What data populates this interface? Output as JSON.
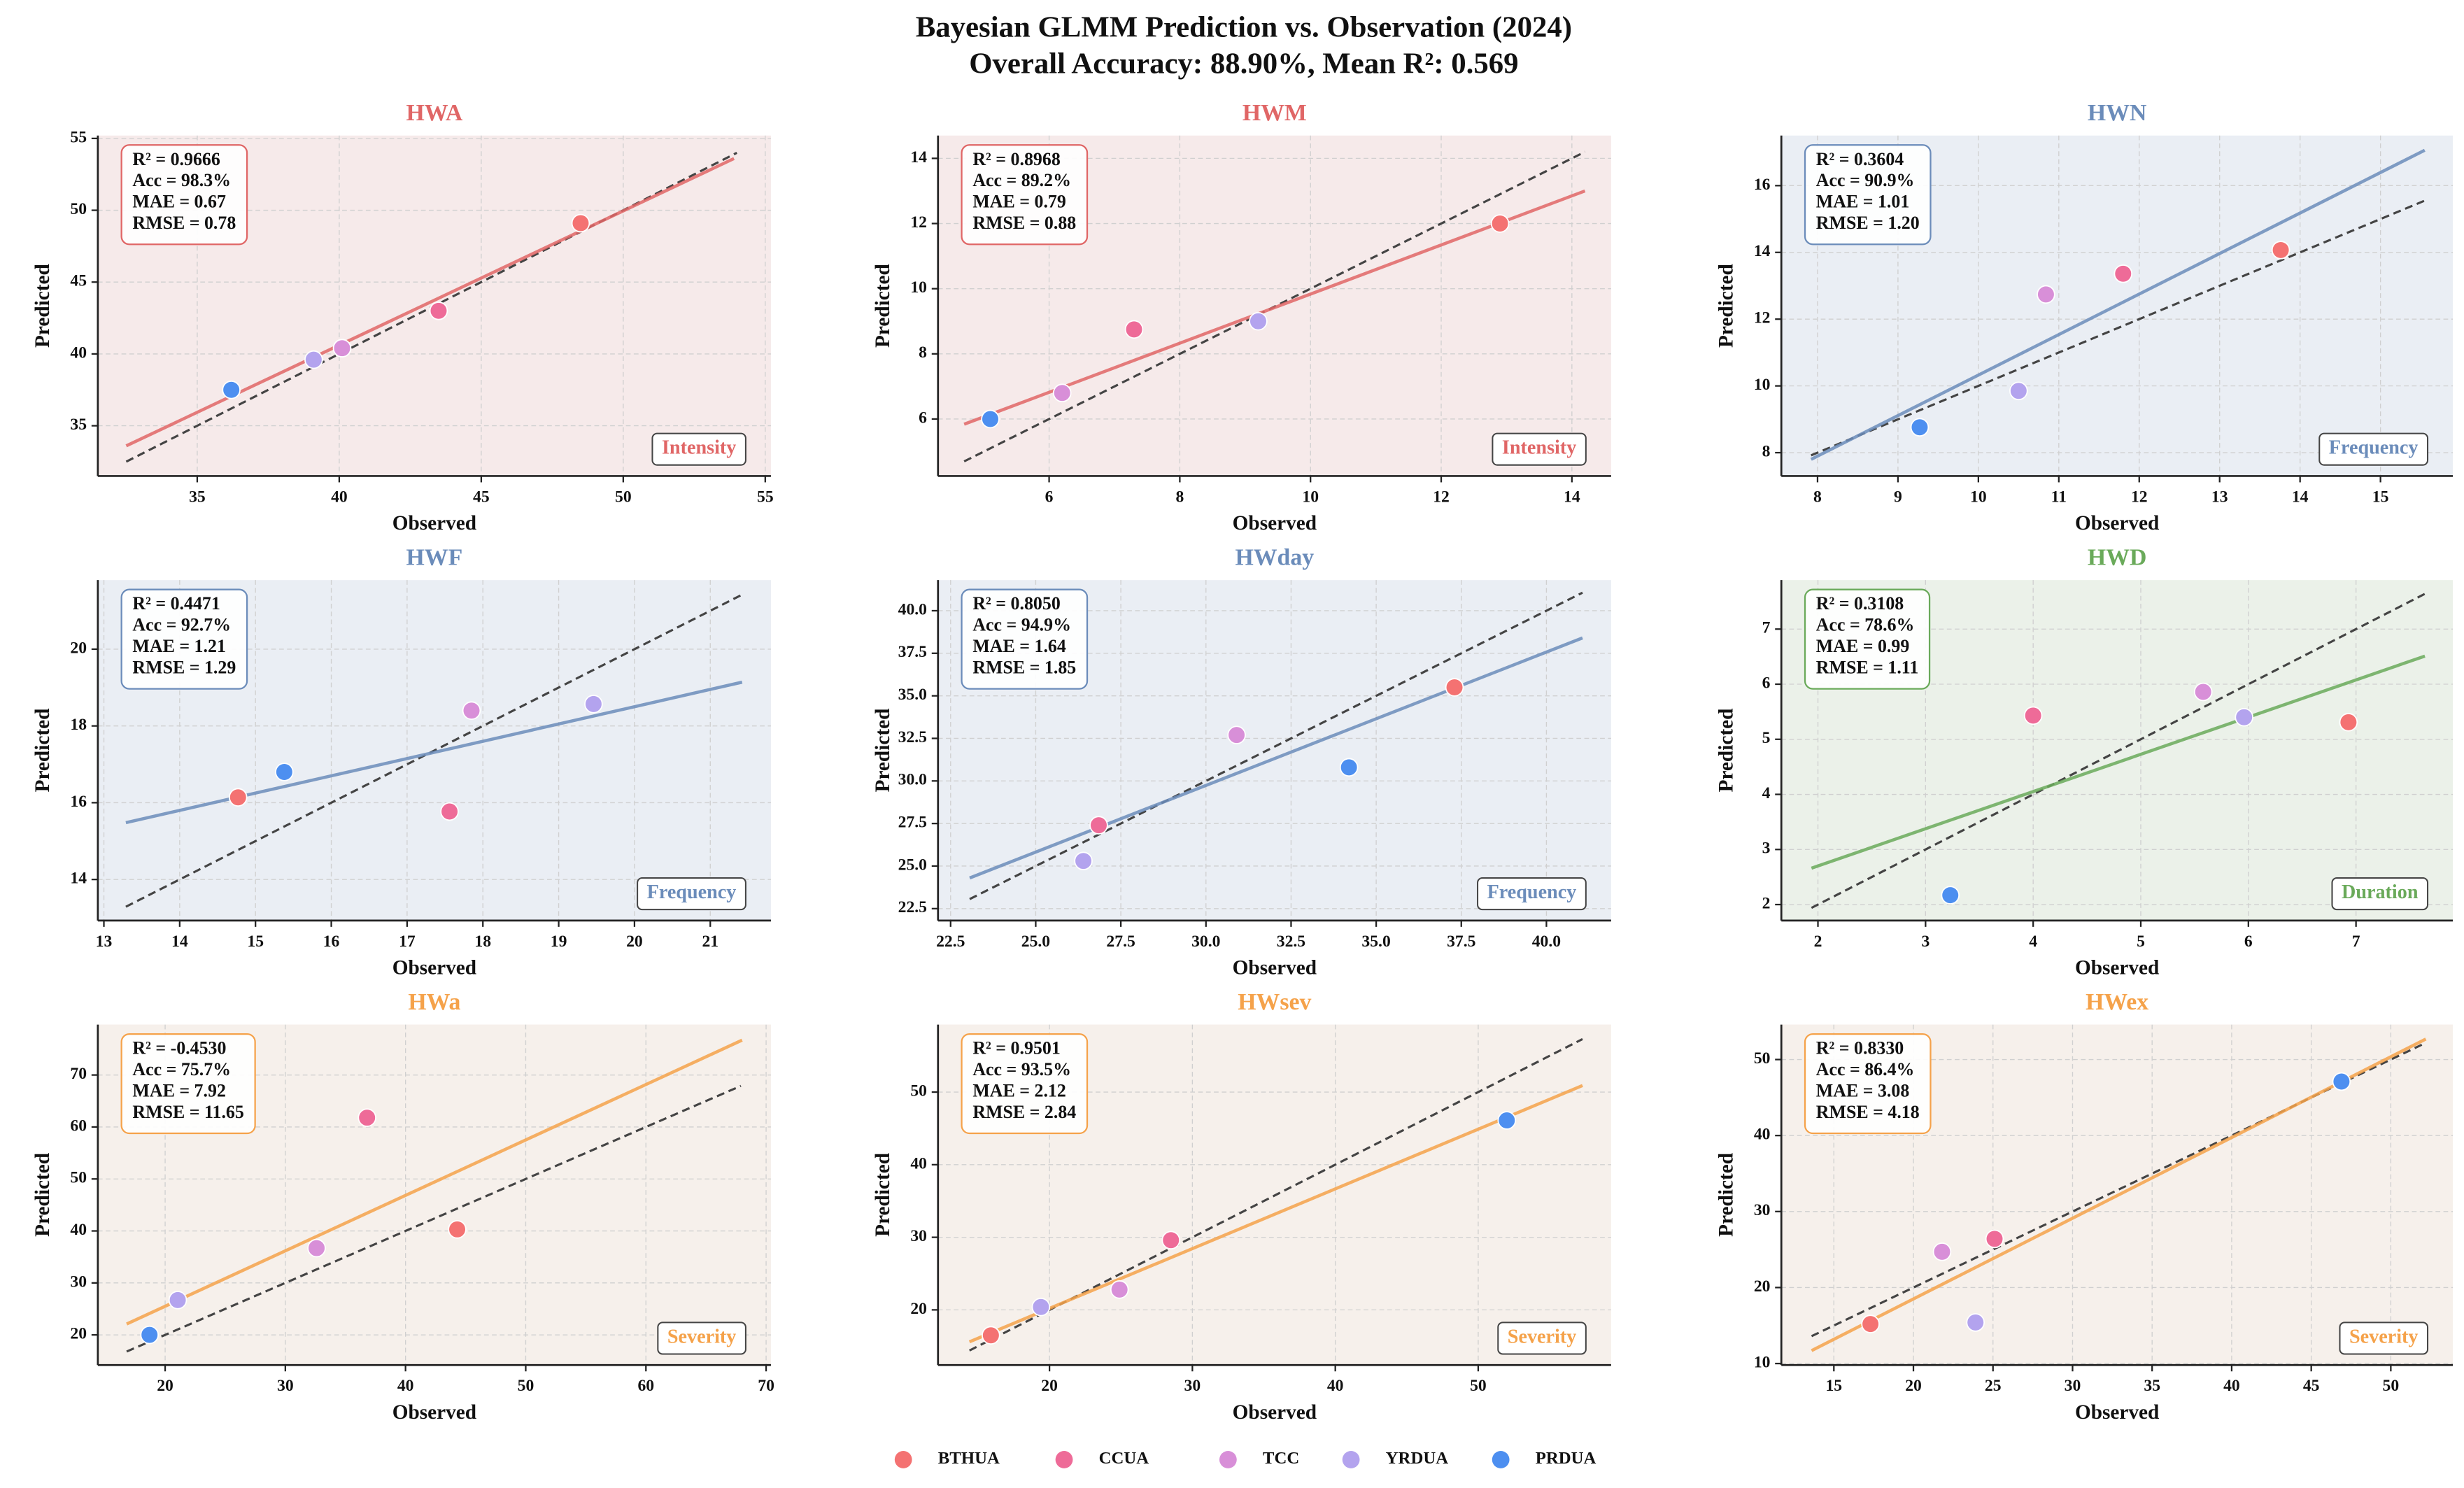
{
  "title_lines": [
    "Bayesian GLMM Prediction vs. Observation (2024)",
    "Overall Accuracy: 88.90%, Mean R²: 0.569"
  ],
  "chart_data": [
    {
      "type": "scatter",
      "title": "HWA",
      "category": "Intensity",
      "color": "#e06666",
      "background": "#f6eaea",
      "grid": true,
      "x_label": "Observed",
      "y_label": "Predicted",
      "stats": [
        "R² = 0.9666",
        "Acc = 98.3%",
        "MAE = 0.67",
        "RMSE = 0.78"
      ],
      "xlim": [
        31.5,
        55.2
      ],
      "xticks": [
        35,
        40,
        45,
        50,
        55
      ],
      "ylim": [
        31.5,
        55.2
      ],
      "yticks": [
        35,
        40,
        45,
        50,
        55
      ],
      "series": [
        {
          "name": "BTHUA",
          "color": "#f47272",
          "x": [
            48.5
          ],
          "values": [
            49.1
          ]
        },
        {
          "name": "CCUA",
          "color": "#ee6b98",
          "x": [
            43.5
          ],
          "values": [
            43.0
          ]
        },
        {
          "name": "TCC",
          "color": "#d88fd8",
          "x": [
            40.1
          ],
          "values": [
            40.4
          ]
        },
        {
          "name": "YRDUA",
          "color": "#b3a3ee",
          "x": [
            39.1
          ],
          "values": [
            39.6
          ]
        },
        {
          "name": "PRDUA",
          "color": "#4d8ff0",
          "x": [
            36.2
          ],
          "values": [
            37.5
          ]
        }
      ],
      "fit_line": {
        "x": [
          32.5,
          53.9
        ],
        "y": [
          33.6,
          53.6
        ]
      },
      "identity_line": {
        "x": [
          32.5,
          54
        ],
        "y": [
          32.5,
          54
        ]
      }
    },
    {
      "type": "scatter",
      "title": "HWM",
      "category": "Intensity",
      "color": "#e06666",
      "background": "#f6eaea",
      "grid": true,
      "x_label": "Observed",
      "y_label": "Predicted",
      "stats": [
        "R² = 0.8968",
        "Acc = 89.2%",
        "MAE = 0.79",
        "RMSE = 0.88"
      ],
      "xlim": [
        4.3,
        14.6
      ],
      "xticks": [
        6,
        8,
        10,
        12,
        14
      ],
      "ylim": [
        4.25,
        14.7
      ],
      "yticks": [
        6,
        8,
        10,
        12,
        14
      ],
      "series": [
        {
          "name": "BTHUA",
          "color": "#f47272",
          "x": [
            12.9
          ],
          "values": [
            12.0
          ]
        },
        {
          "name": "CCUA",
          "color": "#ee6b98",
          "x": [
            7.3
          ],
          "values": [
            8.75
          ]
        },
        {
          "name": "TCC",
          "color": "#d88fd8",
          "x": [
            6.2
          ],
          "values": [
            6.8
          ]
        },
        {
          "name": "YRDUA",
          "color": "#b3a3ee",
          "x": [
            9.2
          ],
          "values": [
            9.0
          ]
        },
        {
          "name": "PRDUA",
          "color": "#4d8ff0",
          "x": [
            5.1
          ],
          "values": [
            6.0
          ]
        }
      ],
      "fit_line": {
        "x": [
          4.7,
          14.2
        ],
        "y": [
          5.84,
          13.0
        ]
      },
      "identity_line": {
        "x": [
          4.7,
          14.2
        ],
        "y": [
          4.7,
          14.2
        ]
      }
    },
    {
      "type": "scatter",
      "title": "HWN",
      "category": "Frequency",
      "color": "#6b8cba",
      "background": "#eaeef4",
      "grid": true,
      "x_label": "Observed",
      "y_label": "Predicted",
      "stats": [
        "R² = 0.3604",
        "Acc = 90.9%",
        "MAE = 1.01",
        "RMSE = 1.20"
      ],
      "xlim": [
        7.55,
        15.9
      ],
      "xticks": [
        8,
        9,
        10,
        11,
        12,
        13,
        14,
        15
      ],
      "ylim": [
        7.3,
        17.5
      ],
      "yticks": [
        8,
        10,
        12,
        14,
        16
      ],
      "series": [
        {
          "name": "BTHUA",
          "color": "#f47272",
          "x": [
            13.76
          ],
          "values": [
            14.07
          ]
        },
        {
          "name": "CCUA",
          "color": "#ee6b98",
          "x": [
            11.8
          ],
          "values": [
            13.36
          ]
        },
        {
          "name": "TCC",
          "color": "#d88fd8",
          "x": [
            10.84
          ],
          "values": [
            12.74
          ]
        },
        {
          "name": "YRDUA",
          "color": "#b3a3ee",
          "x": [
            10.5
          ],
          "values": [
            9.85
          ]
        },
        {
          "name": "PRDUA",
          "color": "#4d8ff0",
          "x": [
            9.27
          ],
          "values": [
            8.76
          ]
        }
      ],
      "fit_line": {
        "x": [
          7.92,
          15.55
        ],
        "y": [
          7.8,
          17.06
        ]
      },
      "identity_line": {
        "x": [
          7.92,
          15.55
        ],
        "y": [
          7.92,
          15.55
        ]
      }
    },
    {
      "type": "scatter",
      "title": "HWF",
      "category": "Frequency",
      "color": "#6b8cba",
      "background": "#eaeef4",
      "grid": true,
      "x_label": "Observed",
      "y_label": "Predicted",
      "stats": [
        "R² = 0.4471",
        "Acc = 92.7%",
        "MAE = 1.21",
        "RMSE = 1.29"
      ],
      "xlim": [
        12.92,
        21.8
      ],
      "xticks": [
        13,
        14,
        15,
        16,
        17,
        18,
        19,
        20,
        21
      ],
      "ylim": [
        12.93,
        21.8
      ],
      "yticks": [
        14,
        16,
        18,
        20
      ],
      "series": [
        {
          "name": "BTHUA",
          "color": "#f47272",
          "x": [
            14.77
          ],
          "values": [
            16.14
          ]
        },
        {
          "name": "CCUA",
          "color": "#ee6b98",
          "x": [
            17.56
          ],
          "values": [
            15.77
          ]
        },
        {
          "name": "TCC",
          "color": "#d88fd8",
          "x": [
            17.85
          ],
          "values": [
            18.4
          ]
        },
        {
          "name": "YRDUA",
          "color": "#b3a3ee",
          "x": [
            19.46
          ],
          "values": [
            18.57
          ]
        },
        {
          "name": "PRDUA",
          "color": "#4d8ff0",
          "x": [
            15.38
          ],
          "values": [
            16.8
          ]
        }
      ],
      "fit_line": {
        "x": [
          13.29,
          21.42
        ],
        "y": [
          15.48,
          19.14
        ]
      },
      "identity_line": {
        "x": [
          13.29,
          21.42
        ],
        "y": [
          13.29,
          21.42
        ]
      }
    },
    {
      "type": "scatter",
      "title": "HWday",
      "category": "Frequency",
      "color": "#6b8cba",
      "background": "#eaeef4",
      "grid": true,
      "x_label": "Observed",
      "y_label": "Predicted",
      "stats": [
        "R² = 0.8050",
        "Acc = 94.9%",
        "MAE = 1.64",
        "RMSE = 1.85"
      ],
      "xlim": [
        22.13,
        41.9
      ],
      "xticks": [
        22.5,
        {
          "value": 25,
          "label": "25.0"
        },
        27.5,
        {
          "value": 30,
          "label": "30.0"
        },
        32.5,
        {
          "value": 35,
          "label": "35.0"
        },
        37.5,
        {
          "value": 40,
          "label": "40.0"
        }
      ],
      "ylim": [
        21.8,
        41.8
      ],
      "yticks": [
        22.5,
        {
          "value": 25,
          "label": "25.0"
        },
        27.5,
        {
          "value": 30,
          "label": "30.0"
        },
        32.5,
        {
          "value": 35,
          "label": "35.0"
        },
        37.5,
        {
          "value": 40,
          "label": "40.0"
        }
      ],
      "series": [
        {
          "name": "BTHUA",
          "color": "#f47272",
          "x": [
            37.3
          ],
          "values": [
            35.5
          ]
        },
        {
          "name": "CCUA",
          "color": "#ee6b98",
          "x": [
            26.85
          ],
          "values": [
            27.4
          ]
        },
        {
          "name": "TCC",
          "color": "#d88fd8",
          "x": [
            30.9
          ],
          "values": [
            32.7
          ]
        },
        {
          "name": "YRDUA",
          "color": "#b3a3ee",
          "x": [
            26.4
          ],
          "values": [
            25.3
          ]
        },
        {
          "name": "PRDUA",
          "color": "#4d8ff0",
          "x": [
            34.2
          ],
          "values": [
            30.8
          ]
        }
      ],
      "fit_line": {
        "x": [
          23.06,
          41.06
        ],
        "y": [
          24.3,
          38.4
        ]
      },
      "identity_line": {
        "x": [
          23.06,
          41.06
        ],
        "y": [
          23.06,
          41.06
        ]
      }
    },
    {
      "type": "scatter",
      "title": "HWD",
      "category": "Duration",
      "color": "#6aaa5a",
      "background": "#ebf1e9",
      "grid": true,
      "x_label": "Observed",
      "y_label": "Predicted",
      "stats": [
        "R² = 0.3108",
        "Acc = 78.6%",
        "MAE = 0.99",
        "RMSE = 1.11"
      ],
      "xlim": [
        1.66,
        7.9
      ],
      "xticks": [
        2,
        3,
        4,
        5,
        6,
        7
      ],
      "ylim": [
        1.71,
        7.89
      ],
      "yticks": [
        2,
        3,
        4,
        5,
        6,
        7
      ],
      "series": [
        {
          "name": "BTHUA",
          "color": "#f47272",
          "x": [
            6.93
          ],
          "values": [
            5.31
          ]
        },
        {
          "name": "CCUA",
          "color": "#ee6b98",
          "x": [
            4.0
          ],
          "values": [
            5.43
          ]
        },
        {
          "name": "TCC",
          "color": "#d88fd8",
          "x": [
            5.58
          ],
          "values": [
            5.86
          ]
        },
        {
          "name": "YRDUA",
          "color": "#b3a3ee",
          "x": [
            5.96
          ],
          "values": [
            5.4
          ]
        },
        {
          "name": "PRDUA",
          "color": "#4d8ff0",
          "x": [
            3.23
          ],
          "values": [
            2.17
          ]
        }
      ],
      "fit_line": {
        "x": [
          1.94,
          7.64
        ],
        "y": [
          2.66,
          6.51
        ]
      },
      "identity_line": {
        "x": [
          1.94,
          7.64
        ],
        "y": [
          1.94,
          7.64
        ]
      }
    },
    {
      "type": "scatter",
      "title": "HWa",
      "category": "Severity",
      "color": "#f5a24a",
      "background": "#f6f0eb",
      "grid": true,
      "x_label": "Observed",
      "y_label": "Predicted",
      "stats": [
        "R² = -0.4530",
        "Acc = 75.7%",
        "MAE = 7.92",
        "RMSE = 11.65"
      ],
      "xlim": [
        14.4,
        70.4
      ],
      "xticks": [
        20,
        30,
        40,
        50,
        60,
        70
      ],
      "ylim": [
        14.2,
        79.7
      ],
      "yticks": [
        20,
        30,
        40,
        50,
        60,
        70
      ],
      "series": [
        {
          "name": "BTHUA",
          "color": "#f47272",
          "x": [
            44.3
          ],
          "values": [
            40.3
          ]
        },
        {
          "name": "CCUA",
          "color": "#ee6b98",
          "x": [
            36.8
          ],
          "values": [
            61.8
          ]
        },
        {
          "name": "TCC",
          "color": "#d88fd8",
          "x": [
            32.6
          ],
          "values": [
            36.7
          ]
        },
        {
          "name": "YRDUA",
          "color": "#b3a3ee",
          "x": [
            21.05
          ],
          "values": [
            26.7
          ]
        },
        {
          "name": "PRDUA",
          "color": "#4d8ff0",
          "x": [
            18.7
          ],
          "values": [
            20.0
          ]
        }
      ],
      "fit_line": {
        "x": [
          16.8,
          68.0
        ],
        "y": [
          22.1,
          76.7
        ]
      },
      "identity_line": {
        "x": [
          16.8,
          67.9
        ],
        "y": [
          16.8,
          67.9
        ]
      }
    },
    {
      "type": "scatter",
      "title": "HWsev",
      "category": "Severity",
      "color": "#f5a24a",
      "background": "#f6f0eb",
      "grid": true,
      "x_label": "Observed",
      "y_label": "Predicted",
      "stats": [
        "R² = 0.9501",
        "Acc = 93.5%",
        "MAE = 2.12",
        "RMSE = 2.84"
      ],
      "xlim": [
        12.2,
        59.3
      ],
      "xticks": [
        20,
        30,
        40,
        50
      ],
      "ylim": [
        12.4,
        59.3
      ],
      "yticks": [
        20,
        30,
        40,
        50
      ],
      "series": [
        {
          "name": "BTHUA",
          "color": "#f47272",
          "x": [
            15.9
          ],
          "values": [
            16.5
          ]
        },
        {
          "name": "CCUA",
          "color": "#ee6b98",
          "x": [
            28.5
          ],
          "values": [
            29.6
          ]
        },
        {
          "name": "TCC",
          "color": "#d88fd8",
          "x": [
            24.9
          ],
          "values": [
            22.8
          ]
        },
        {
          "name": "YRDUA",
          "color": "#b3a3ee",
          "x": [
            19.4
          ],
          "values": [
            20.4
          ]
        },
        {
          "name": "PRDUA",
          "color": "#4d8ff0",
          "x": [
            52.0
          ],
          "values": [
            46.1
          ]
        }
      ],
      "fit_line": {
        "x": [
          14.4,
          57.3
        ],
        "y": [
          15.6,
          50.9
        ]
      },
      "identity_line": {
        "x": [
          14.4,
          57.3
        ],
        "y": [
          14.4,
          57.3
        ]
      }
    },
    {
      "type": "scatter",
      "title": "HWex",
      "category": "Severity",
      "color": "#f5a24a",
      "background": "#f6f0eb",
      "grid": true,
      "x_label": "Observed",
      "y_label": "Predicted",
      "stats": [
        "R² = 0.8330",
        "Acc = 86.4%",
        "MAE = 3.08",
        "RMSE = 4.18"
      ],
      "xlim": [
        11.7,
        53.9
      ],
      "xticks": [
        15,
        20,
        25,
        30,
        35,
        40,
        45,
        50
      ],
      "ylim": [
        9.8,
        54.6
      ],
      "yticks": [
        10,
        20,
        30,
        40,
        50
      ],
      "series": [
        {
          "name": "BTHUA",
          "color": "#f47272",
          "x": [
            17.3
          ],
          "values": [
            15.2
          ]
        },
        {
          "name": "CCUA",
          "color": "#ee6b98",
          "x": [
            25.1
          ],
          "values": [
            26.4
          ]
        },
        {
          "name": "TCC",
          "color": "#d88fd8",
          "x": [
            21.8
          ],
          "values": [
            24.7
          ]
        },
        {
          "name": "YRDUA",
          "color": "#b3a3ee",
          "x": [
            23.9
          ],
          "values": [
            15.4
          ]
        },
        {
          "name": "PRDUA",
          "color": "#4d8ff0",
          "x": [
            46.9
          ],
          "values": [
            47.1
          ]
        }
      ],
      "fit_line": {
        "x": [
          13.6,
          52.2
        ],
        "y": [
          11.7,
          52.7
        ]
      },
      "identity_line": {
        "x": [
          13.6,
          52.2
        ],
        "y": [
          13.6,
          52.2
        ]
      }
    }
  ]
}
